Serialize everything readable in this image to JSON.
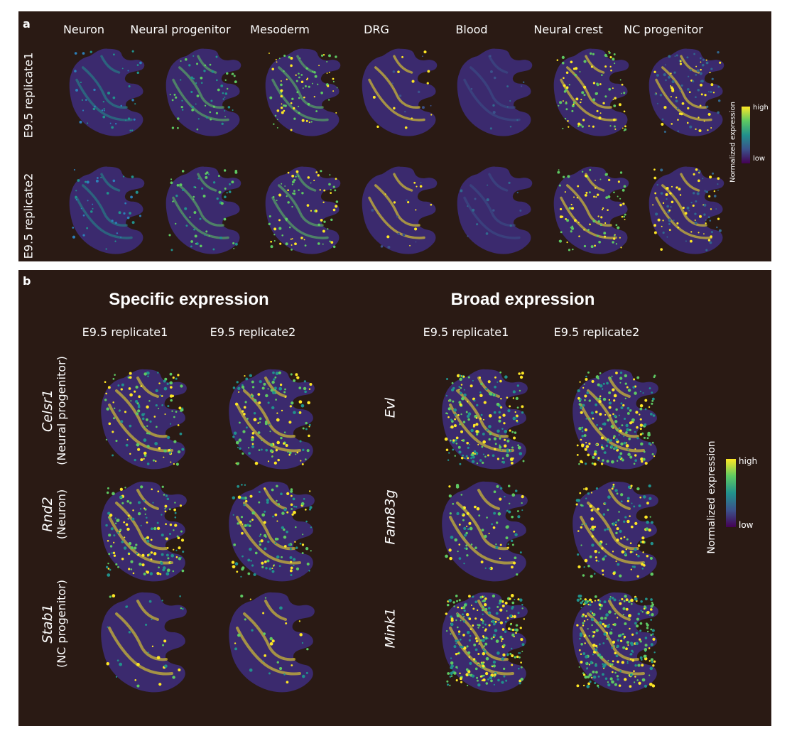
{
  "panel_a": {
    "label": "a",
    "columns": [
      "Neuron",
      "Neural progenitor",
      "Mesoderm",
      "DRG",
      "Blood",
      "Neural crest",
      "NC progenitor"
    ],
    "rows": [
      "E9.5 replicate1",
      "E9.5 replicate2"
    ],
    "colorbar": {
      "title": "Normalized expression",
      "high": "high",
      "low": "low"
    }
  },
  "panel_b": {
    "label": "b",
    "specific": {
      "title": "Specific expression",
      "columns": [
        "E9.5 replicate1",
        "E9.5 replicate2"
      ],
      "genes": [
        {
          "gene": "Celsr1",
          "cell_type": "(Neural progenitor)"
        },
        {
          "gene": "Rnd2",
          "cell_type": "(Neuron)"
        },
        {
          "gene": "Stab1",
          "cell_type": "(NC progenitor)"
        }
      ]
    },
    "broad": {
      "title": "Broad expression",
      "columns": [
        "E9.5 replicate1",
        "E9.5 replicate2"
      ],
      "genes": [
        {
          "gene": "Evl"
        },
        {
          "gene": "Fam83g"
        },
        {
          "gene": "Mink1"
        }
      ]
    },
    "colorbar": {
      "title": "Normalized expression",
      "high": "high",
      "low": "low"
    }
  },
  "colors": {
    "background": "#2a1a14",
    "tissue": "#3b2a6e",
    "viridis_low": "#440154",
    "viridis_mid": "#21918c",
    "viridis_high": "#fde725"
  }
}
